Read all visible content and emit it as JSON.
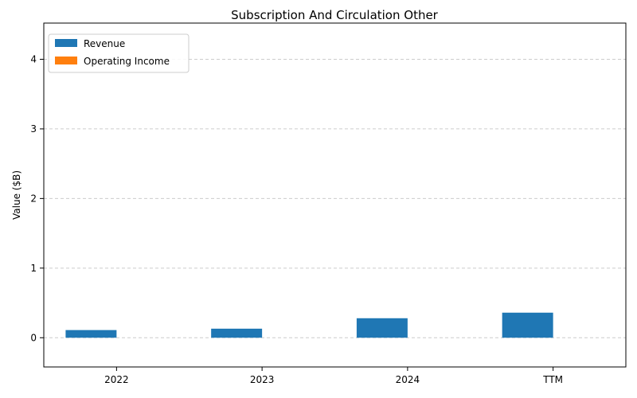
{
  "chart_data": {
    "type": "bar",
    "title": "Subscription And Circulation Other",
    "xlabel": "",
    "ylabel": "Value ($B)",
    "categories": [
      "2022",
      "2023",
      "2024",
      "TTM"
    ],
    "series": [
      {
        "name": "Revenue",
        "color": "#1f77b4",
        "values": [
          0.11,
          0.13,
          0.28,
          0.36
        ]
      },
      {
        "name": "Operating Income",
        "color": "#ff7f0e",
        "values": [
          0,
          0,
          0,
          0
        ]
      }
    ],
    "ylim": [
      -0.42,
      4.52
    ],
    "yticks": [
      "0",
      "1",
      "2",
      "3",
      "4"
    ],
    "grid": "y-dashed",
    "legend_position": "top-left"
  }
}
